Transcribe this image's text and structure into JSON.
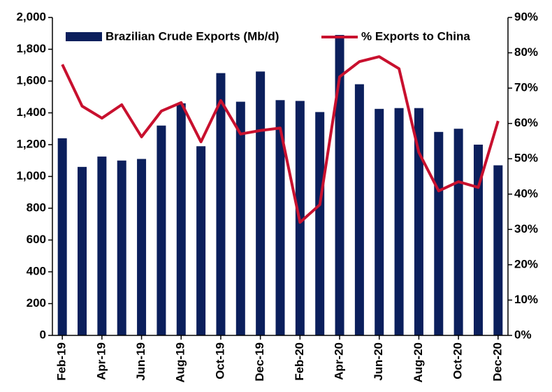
{
  "chart_data": {
    "type": "bar_line",
    "categories": [
      "Feb-19",
      null,
      "Apr-19",
      null,
      "Jun-19",
      null,
      "Aug-19",
      null,
      "Oct-19",
      null,
      "Dec-19",
      null,
      "Feb-20",
      null,
      "Apr-20",
      null,
      "Jun-20",
      null,
      "Aug-20",
      null,
      "Oct-20",
      null,
      "Dec-20"
    ],
    "series": [
      {
        "name": "Brazilian Crude Exports (Mb/d)",
        "color": "#0b1f5c",
        "values": [
          1240,
          1060,
          1125,
          1100,
          1110,
          1320,
          1460,
          1190,
          1650,
          1470,
          1660,
          1480,
          1475,
          1405,
          1890,
          1580,
          1425,
          1430,
          1430,
          1280,
          1300,
          1200,
          1070
        ]
      },
      {
        "name": "% Exports to China",
        "color": "#c8102e",
        "axis": "y2",
        "values": [
          76.7,
          64.9,
          61.5,
          65.3,
          56.2,
          63.5,
          65.9,
          54.8,
          66.5,
          57,
          58,
          58.7,
          32,
          37,
          73.2,
          77.5,
          78.9,
          75.5,
          51.8,
          40.9,
          43.5,
          41.9,
          60.7
        ]
      }
    ],
    "ylim": [
      0,
      2000
    ],
    "yticks": [
      0,
      200,
      400,
      600,
      800,
      {
        "value": 1000,
        "label": "1,000"
      },
      {
        "value": 1200,
        "label": "1,200"
      },
      {
        "value": 1400,
        "label": "1,400"
      },
      {
        "value": 1600,
        "label": "1,600"
      },
      {
        "value": 1800,
        "label": "1,800"
      },
      {
        "value": 2000,
        "label": "2,000"
      }
    ],
    "y2lim": [
      0,
      90
    ],
    "y2ticks": [
      {
        "value": 0,
        "label": "0%"
      },
      {
        "value": 10,
        "label": "10%"
      },
      {
        "value": 20,
        "label": "20%"
      },
      {
        "value": 30,
        "label": "30%"
      },
      {
        "value": 40,
        "label": "40%"
      },
      {
        "value": 50,
        "label": "50%"
      },
      {
        "value": 60,
        "label": "60%"
      },
      {
        "value": 70,
        "label": "70%"
      },
      {
        "value": 80,
        "label": "80%"
      },
      {
        "value": 90,
        "label": "90%"
      }
    ],
    "grid": false,
    "legend": "top"
  }
}
